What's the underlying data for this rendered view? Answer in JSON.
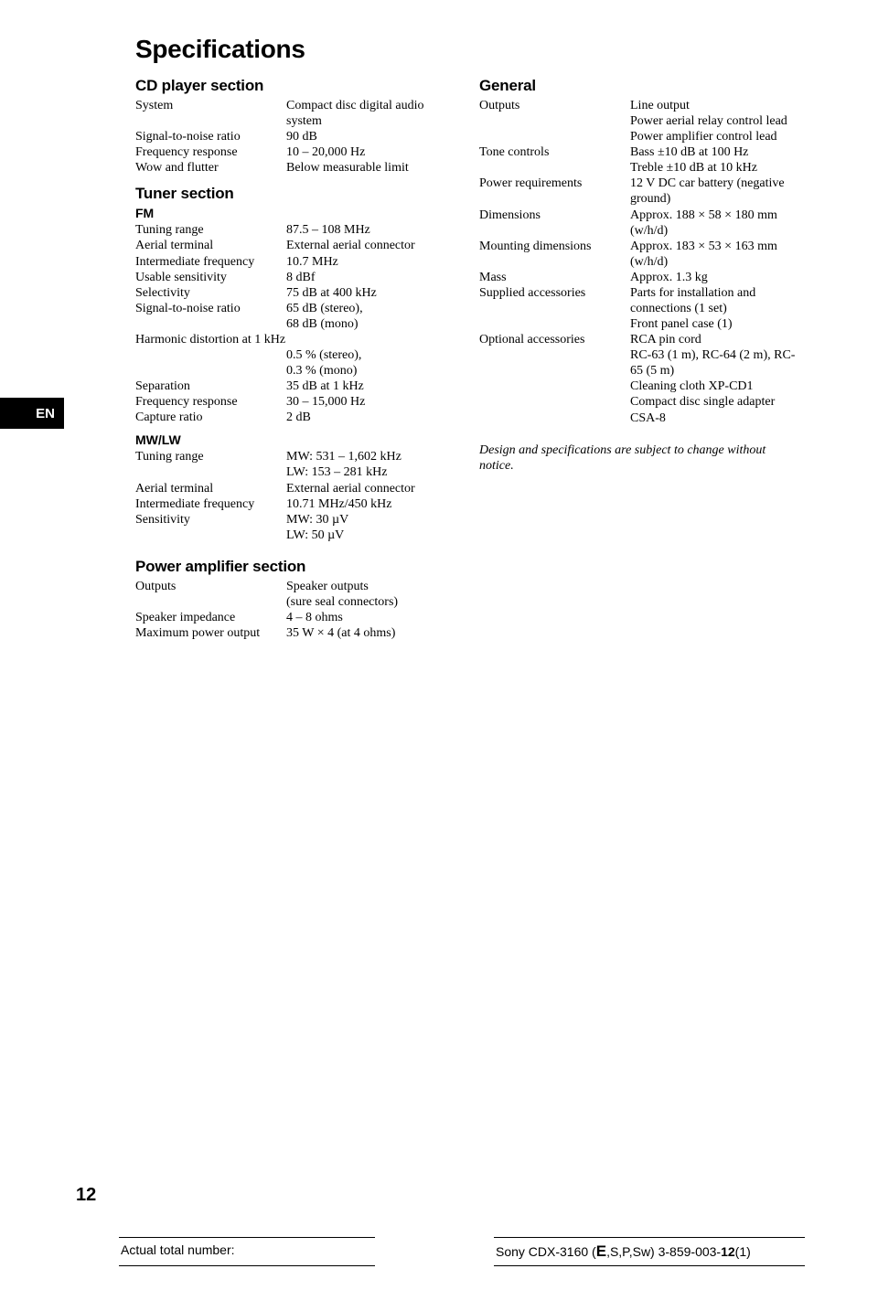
{
  "lang_tab": "EN",
  "title": "Specifications",
  "left": {
    "cd": {
      "heading": "CD player section",
      "rows": [
        {
          "label": "System",
          "value": "Compact disc digital audio system"
        },
        {
          "label": "Signal-to-noise ratio",
          "value": "90 dB"
        },
        {
          "label": "Frequency response",
          "value": "10 – 20,000 Hz"
        },
        {
          "label": "Wow and flutter",
          "value": "Below measurable limit"
        }
      ]
    },
    "tuner": {
      "heading": "Tuner section",
      "fm": {
        "heading": "FM",
        "rows": [
          {
            "label": "Tuning range",
            "value": "87.5 – 108 MHz"
          },
          {
            "label": "Aerial terminal",
            "value": "External aerial connector"
          },
          {
            "label": "Intermediate frequency",
            "value": "10.7 MHz"
          },
          {
            "label": "Usable sensitivity",
            "value": "8 dBf"
          },
          {
            "label": "Selectivity",
            "value": "75 dB at 400 kHz"
          },
          {
            "label": "Signal-to-noise ratio",
            "value": "65 dB (stereo),\n68 dB (mono)"
          },
          {
            "label": "Harmonic distortion at 1 kHz",
            "value": "",
            "full": true
          },
          {
            "label": "",
            "value": "0.5 % (stereo),\n0.3 % (mono)"
          },
          {
            "label": "Separation",
            "value": "35 dB at 1 kHz"
          },
          {
            "label": "Frequency response",
            "value": "30 – 15,000 Hz"
          },
          {
            "label": "Capture ratio",
            "value": "2 dB"
          }
        ]
      },
      "mwlw": {
        "heading": "MW/LW",
        "rows": [
          {
            "label": "Tuning range",
            "value": "MW: 531 – 1,602 kHz\nLW: 153 – 281 kHz"
          },
          {
            "label": "Aerial terminal",
            "value": "External aerial connector"
          },
          {
            "label": "Intermediate frequency",
            "value": "10.71 MHz/450 kHz"
          },
          {
            "label": "Sensitivity",
            "value": "MW: 30 µV\nLW: 50 µV"
          }
        ]
      }
    },
    "amp": {
      "heading": "Power amplifier section",
      "rows": [
        {
          "label": "Outputs",
          "value": "Speaker outputs\n(sure seal connectors)"
        },
        {
          "label": "Speaker impedance",
          "value": "4 – 8 ohms"
        },
        {
          "label": "Maximum power output",
          "value": "35 W × 4 (at 4 ohms)"
        }
      ]
    }
  },
  "right": {
    "general": {
      "heading": "General",
      "rows": [
        {
          "label": "Outputs",
          "value": "Line output\nPower aerial relay control lead\nPower amplifier control lead"
        },
        {
          "label": "Tone controls",
          "value": "Bass ±10 dB at 100 Hz\nTreble ±10 dB at 10 kHz"
        },
        {
          "label": "Power requirements",
          "value": "12 V DC car battery (negative ground)"
        },
        {
          "label": "Dimensions",
          "value": "Approx. 188 × 58 × 180 mm (w/h/d)"
        },
        {
          "label": "Mounting dimensions",
          "value": "Approx. 183 × 53 × 163 mm (w/h/d)"
        },
        {
          "label": "Mass",
          "value": "Approx. 1.3 kg"
        },
        {
          "label": "Supplied accessories",
          "value": "Parts for installation and connections (1 set)\nFront panel case (1)"
        },
        {
          "label": "Optional accessories",
          "value": "RCA pin cord\nRC-63 (1 m), RC-64 (2 m), RC-65 (5 m)\nCleaning cloth XP-CD1\nCompact disc single adapter CSA-8"
        }
      ]
    },
    "note": "Design and specifications are subject to change without notice."
  },
  "page_number": "12",
  "footer": {
    "left": "Actual total number:",
    "right_prefix": "Sony CDX-3160 (",
    "right_big": "E",
    "right_mid": ",S,P,Sw)  3-859-003-",
    "right_bold2": "12",
    "right_suffix": "(1)"
  }
}
